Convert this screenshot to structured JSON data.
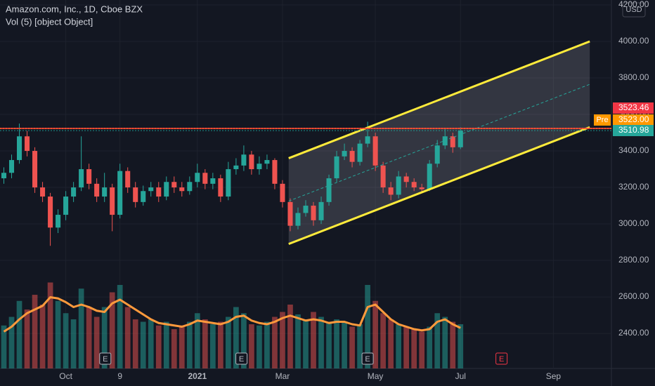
{
  "chart_data": {
    "type": "candlestick",
    "title": "Amazon.com, Inc., 1D, Cboe BZX",
    "subtitle": "Vol (5) [object Object]",
    "currency": "USD",
    "categories": [
      null,
      null,
      null,
      null,
      null,
      null,
      null,
      null,
      "Oct",
      null,
      null,
      null,
      null,
      null,
      null,
      "9",
      null,
      null,
      null,
      null,
      null,
      null,
      null,
      null,
      null,
      "2021",
      null,
      null,
      null,
      null,
      null,
      null,
      null,
      null,
      null,
      null,
      "Mar",
      null,
      null,
      null,
      null,
      null,
      null,
      null,
      null,
      null,
      null,
      null,
      "May",
      null,
      null,
      null,
      null,
      null,
      null,
      null,
      null,
      null,
      null,
      "Jul",
      null,
      null,
      null,
      null,
      null,
      null,
      null,
      null,
      null,
      null,
      null,
      "Sep",
      null,
      null,
      null,
      null,
      null,
      null,
      null
    ],
    "open": [
      3250,
      3280,
      3350,
      3480,
      3400,
      3200,
      3150,
      2980,
      3050,
      3150,
      3200,
      3300,
      3220,
      3150,
      3200,
      3050,
      3290,
      3200,
      3120,
      3180,
      3200,
      3150,
      3230,
      3200,
      3180,
      3230,
      3280,
      3220,
      3250,
      3150,
      3300,
      3320,
      3380,
      3300,
      3330,
      3350,
      3220,
      3120,
      2990,
      3060,
      3100,
      3020,
      3120,
      3250,
      3370,
      3400,
      3340,
      3440,
      3480,
      3320,
      3200,
      3160,
      3260,
      3230,
      3200,
      3190,
      3330,
      3430,
      3480,
      3420,
      null,
      null,
      null,
      null,
      null,
      null,
      null,
      null,
      null,
      null,
      null,
      null,
      null,
      null,
      null,
      null,
      null,
      null,
      null
    ],
    "high": [
      3310,
      3380,
      3550,
      3510,
      3420,
      3230,
      3170,
      3080,
      3180,
      3230,
      3480,
      3330,
      3250,
      3280,
      3220,
      3330,
      3310,
      3230,
      3210,
      3230,
      3230,
      3260,
      3260,
      3230,
      3260,
      3330,
      3300,
      3280,
      3270,
      3340,
      3360,
      3430,
      3400,
      3370,
      3380,
      3360,
      3240,
      3140,
      3090,
      3130,
      3120,
      3150,
      3270,
      3400,
      3440,
      3420,
      3460,
      3560,
      3500,
      3340,
      3230,
      3290,
      3280,
      3250,
      3220,
      3350,
      3460,
      3520,
      3500,
      3530,
      null,
      null,
      null,
      null,
      null,
      null,
      null,
      null,
      null,
      null,
      null,
      null,
      null,
      null,
      null,
      null,
      null,
      null,
      null
    ],
    "low": [
      3220,
      3250,
      3330,
      3370,
      3170,
      3120,
      2880,
      2950,
      3020,
      3120,
      3180,
      3190,
      3120,
      3120,
      2960,
      3030,
      3170,
      3090,
      3100,
      3150,
      3120,
      3130,
      3170,
      3150,
      3160,
      3200,
      3190,
      3190,
      3120,
      3130,
      3270,
      3290,
      3270,
      3270,
      3300,
      3190,
      3090,
      2960,
      2970,
      3040,
      2990,
      3000,
      3100,
      3230,
      3350,
      3310,
      3320,
      3420,
      3290,
      3170,
      3130,
      3140,
      3200,
      3180,
      3170,
      3180,
      3310,
      3410,
      3390,
      3410,
      null,
      null,
      null,
      null,
      null,
      null,
      null,
      null,
      null,
      null,
      null,
      null,
      null,
      null,
      null,
      null,
      null,
      null,
      null
    ],
    "close": [
      3280,
      3350,
      3480,
      3400,
      3200,
      3150,
      2980,
      3050,
      3150,
      3200,
      3300,
      3220,
      3150,
      3200,
      3050,
      3290,
      3200,
      3120,
      3180,
      3200,
      3150,
      3230,
      3200,
      3180,
      3230,
      3280,
      3220,
      3250,
      3150,
      3300,
      3320,
      3380,
      3300,
      3330,
      3350,
      3220,
      3120,
      2990,
      3060,
      3100,
      3020,
      3120,
      3250,
      3370,
      3400,
      3340,
      3440,
      3480,
      3320,
      3200,
      3160,
      3260,
      3230,
      3200,
      3190,
      3330,
      3430,
      3480,
      3420,
      3510.98,
      null,
      null,
      null,
      null,
      null,
      null,
      null,
      null,
      null,
      null,
      null,
      null,
      null,
      null,
      null,
      null,
      null,
      null,
      null
    ],
    "volume": [
      3.5,
      4.2,
      5.5,
      4.8,
      6.0,
      5.2,
      7.0,
      5.5,
      4.5,
      4.0,
      6.5,
      5.0,
      4.2,
      5.0,
      6.2,
      6.8,
      5.0,
      4.0,
      3.8,
      4.0,
      3.5,
      3.8,
      3.2,
      3.5,
      3.8,
      4.5,
      4.0,
      3.6,
      3.8,
      4.2,
      5.0,
      4.5,
      3.6,
      3.5,
      3.8,
      4.2,
      4.6,
      5.2,
      4.4,
      4.0,
      4.6,
      4.2,
      3.8,
      4.0,
      3.8,
      3.4,
      3.6,
      6.8,
      5.5,
      4.5,
      4.0,
      3.6,
      3.4,
      3.2,
      3.0,
      3.4,
      4.5,
      4.2,
      3.8,
      3.6,
      null,
      null,
      null,
      null,
      null,
      null,
      null,
      null,
      null,
      null,
      null,
      null,
      null,
      null,
      null,
      null,
      null,
      null,
      null
    ],
    "volume_ma": [
      3.0,
      3.4,
      4.0,
      4.5,
      4.8,
      5.1,
      5.8,
      5.7,
      5.4,
      5.0,
      5.2,
      5.0,
      4.7,
      4.6,
      5.3,
      5.6,
      5.2,
      4.8,
      4.4,
      4.0,
      3.7,
      3.6,
      3.5,
      3.4,
      3.6,
      3.9,
      3.8,
      3.7,
      3.6,
      3.8,
      4.2,
      4.3,
      3.9,
      3.7,
      3.6,
      3.8,
      4.1,
      4.3,
      4.1,
      3.9,
      4.0,
      3.9,
      3.7,
      3.8,
      3.8,
      3.6,
      3.5,
      5.0,
      5.2,
      4.6,
      4.0,
      3.6,
      3.4,
      3.2,
      3.1,
      3.2,
      3.8,
      4.0,
      3.6,
      3.3,
      null,
      null,
      null,
      null,
      null,
      null,
      null,
      null,
      null,
      null,
      null,
      null,
      null,
      null,
      null,
      null,
      null,
      null,
      null
    ],
    "volume_ylim": [
      0,
      8
    ],
    "up_color": "#26a69a",
    "down_color": "#ef5350",
    "ma_color": "#ff9a3c",
    "ylim": [
      2208,
      4227
    ],
    "yticks": [
      {
        "value": 2400,
        "label": "2400.00"
      },
      {
        "value": 2600,
        "label": "2600.00"
      },
      {
        "value": 2800,
        "label": "2800.00"
      },
      {
        "value": 3000,
        "label": "3000.00"
      },
      {
        "value": 3200,
        "label": "3200.00"
      },
      {
        "value": 3400,
        "label": "3400.00"
      },
      {
        "value": 3600,
        "label": "3600.00"
      },
      {
        "value": 3800,
        "label": "3800.00"
      },
      {
        "value": 4000,
        "label": "4000.00"
      },
      {
        "value": 4200,
        "label": "4200.00"
      }
    ],
    "grid": true,
    "channel": {
      "x": [
        36.8,
        75.7
      ],
      "upper": [
        3360,
        4000
      ],
      "lower": [
        2890,
        3530
      ],
      "middle": [
        3125,
        3765
      ],
      "color": "#ffeb3b"
    },
    "price_lines": [
      {
        "value": 3523.46,
        "label": "3523.46",
        "color": "#f23645"
      },
      {
        "name": "Pre",
        "value": 3523.0,
        "label": "3523.00",
        "color": "#ff9800"
      },
      {
        "value": 3510.98,
        "label": "3510.98",
        "color": "#26a69a"
      }
    ],
    "events": [
      {
        "label": "E",
        "x": 13.1,
        "color": "#b2b5be"
      },
      {
        "label": "E",
        "x": 30.7,
        "color": "#b2b5be"
      },
      {
        "label": "E",
        "x": 47.0,
        "color": "#b2b5be"
      },
      {
        "label": "E",
        "x": 64.3,
        "color": "#f23645"
      }
    ]
  }
}
